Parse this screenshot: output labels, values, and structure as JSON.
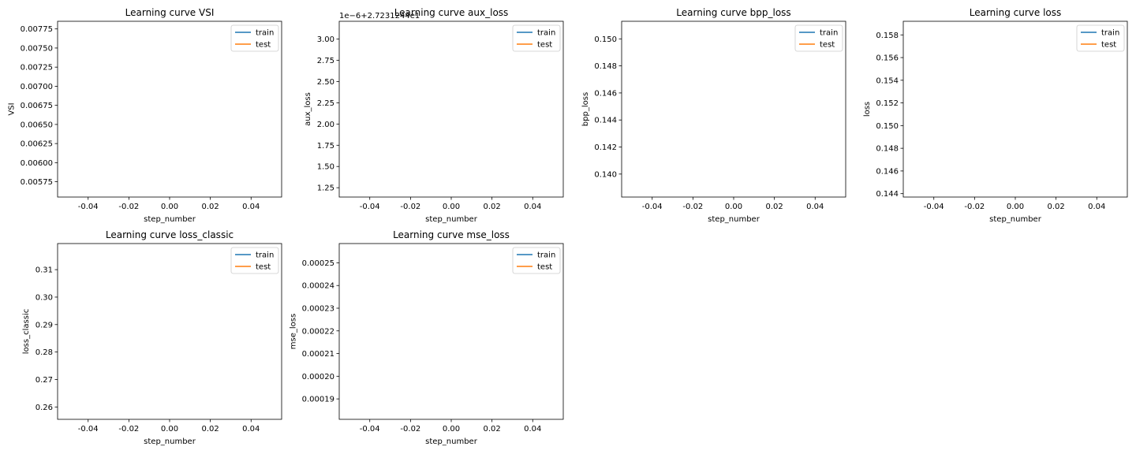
{
  "chart_data": [
    {
      "type": "line",
      "title": "Learning curve VSI",
      "xlabel": "step_number",
      "ylabel": "VSI",
      "xlim": [
        -0.055,
        0.055
      ],
      "ylim": [
        0.00555,
        0.00785
      ],
      "xticks": [
        "-0.04",
        "-0.02",
        "0.00",
        "0.02",
        "0.04"
      ],
      "xtick_values": [
        -0.04,
        -0.02,
        0.0,
        0.02,
        0.04
      ],
      "yticks": [
        "0.00575",
        "0.00600",
        "0.00625",
        "0.00650",
        "0.00675",
        "0.00700",
        "0.00725",
        "0.00750",
        "0.00775"
      ],
      "ytick_values": [
        0.00575,
        0.006,
        0.00625,
        0.0065,
        0.00675,
        0.007,
        0.00725,
        0.0075,
        0.00775
      ],
      "offset_text": "",
      "legend_position": "upper right",
      "series": [
        {
          "name": "train",
          "color": "#1f77b4",
          "x": [],
          "y": []
        },
        {
          "name": "test",
          "color": "#ff7f0e",
          "x": [],
          "y": []
        }
      ]
    },
    {
      "type": "line",
      "title": "Learning curve aux_loss",
      "xlabel": "step_number",
      "ylabel": "aux_loss",
      "xlim": [
        -0.055,
        0.055
      ],
      "ylim": [
        1.14,
        3.21
      ],
      "xticks": [
        "-0.04",
        "-0.02",
        "0.00",
        "0.02",
        "0.04"
      ],
      "xtick_values": [
        -0.04,
        -0.02,
        0.0,
        0.02,
        0.04
      ],
      "yticks": [
        "1.25",
        "1.50",
        "1.75",
        "2.00",
        "2.25",
        "2.50",
        "2.75",
        "3.00"
      ],
      "ytick_values": [
        1.25,
        1.5,
        1.75,
        2.0,
        2.25,
        2.5,
        2.75,
        3.0
      ],
      "offset_text": "1e−6+2.7231244e1",
      "legend_position": "upper right",
      "series": [
        {
          "name": "train",
          "color": "#1f77b4",
          "x": [],
          "y": []
        },
        {
          "name": "test",
          "color": "#ff7f0e",
          "x": [],
          "y": []
        }
      ]
    },
    {
      "type": "line",
      "title": "Learning curve bpp_loss",
      "xlabel": "step_number",
      "ylabel": "bpp_loss",
      "xlim": [
        -0.055,
        0.055
      ],
      "ylim": [
        0.1383,
        0.1513
      ],
      "xticks": [
        "-0.04",
        "-0.02",
        "0.00",
        "0.02",
        "0.04"
      ],
      "xtick_values": [
        -0.04,
        -0.02,
        0.0,
        0.02,
        0.04
      ],
      "yticks": [
        "0.140",
        "0.142",
        "0.144",
        "0.146",
        "0.148",
        "0.150"
      ],
      "ytick_values": [
        0.14,
        0.142,
        0.144,
        0.146,
        0.148,
        0.15
      ],
      "offset_text": "",
      "legend_position": "upper right",
      "series": [
        {
          "name": "train",
          "color": "#1f77b4",
          "x": [],
          "y": []
        },
        {
          "name": "test",
          "color": "#ff7f0e",
          "x": [],
          "y": []
        }
      ]
    },
    {
      "type": "line",
      "title": "Learning curve loss",
      "xlabel": "step_number",
      "ylabel": "loss",
      "xlim": [
        -0.055,
        0.055
      ],
      "ylim": [
        0.1437,
        0.1592
      ],
      "xticks": [
        "-0.04",
        "-0.02",
        "0.00",
        "0.02",
        "0.04"
      ],
      "xtick_values": [
        -0.04,
        -0.02,
        0.0,
        0.02,
        0.04
      ],
      "yticks": [
        "0.144",
        "0.146",
        "0.148",
        "0.150",
        "0.152",
        "0.154",
        "0.156",
        "0.158"
      ],
      "ytick_values": [
        0.144,
        0.146,
        0.148,
        0.15,
        0.152,
        0.154,
        0.156,
        0.158
      ],
      "offset_text": "",
      "legend_position": "upper right",
      "series": [
        {
          "name": "train",
          "color": "#1f77b4",
          "x": [],
          "y": []
        },
        {
          "name": "test",
          "color": "#ff7f0e",
          "x": [],
          "y": []
        }
      ]
    },
    {
      "type": "line",
      "title": "Learning curve loss_classic",
      "xlabel": "step_number",
      "ylabel": "loss_classic",
      "xlim": [
        -0.055,
        0.055
      ],
      "ylim": [
        0.2555,
        0.3195
      ],
      "xticks": [
        "-0.04",
        "-0.02",
        "0.00",
        "0.02",
        "0.04"
      ],
      "xtick_values": [
        -0.04,
        -0.02,
        0.0,
        0.02,
        0.04
      ],
      "yticks": [
        "0.26",
        "0.27",
        "0.28",
        "0.29",
        "0.30",
        "0.31"
      ],
      "ytick_values": [
        0.26,
        0.27,
        0.28,
        0.29,
        0.3,
        0.31
      ],
      "offset_text": "",
      "legend_position": "upper right",
      "series": [
        {
          "name": "train",
          "color": "#1f77b4",
          "x": [],
          "y": []
        },
        {
          "name": "test",
          "color": "#ff7f0e",
          "x": [],
          "y": []
        }
      ]
    },
    {
      "type": "line",
      "title": "Learning curve mse_loss",
      "xlabel": "step_number",
      "ylabel": "mse_loss",
      "xlim": [
        -0.055,
        0.055
      ],
      "ylim": [
        0.000181,
        0.0002585
      ],
      "xticks": [
        "-0.04",
        "-0.02",
        "0.00",
        "0.02",
        "0.04"
      ],
      "xtick_values": [
        -0.04,
        -0.02,
        0.0,
        0.02,
        0.04
      ],
      "yticks": [
        "0.00019",
        "0.00020",
        "0.00021",
        "0.00022",
        "0.00023",
        "0.00024",
        "0.00025"
      ],
      "ytick_values": [
        0.00019,
        0.0002,
        0.00021,
        0.00022,
        0.00023,
        0.00024,
        0.00025
      ],
      "offset_text": "",
      "legend_position": "upper right",
      "series": [
        {
          "name": "train",
          "color": "#1f77b4",
          "x": [],
          "y": []
        },
        {
          "name": "test",
          "color": "#ff7f0e",
          "x": [],
          "y": []
        }
      ]
    }
  ]
}
